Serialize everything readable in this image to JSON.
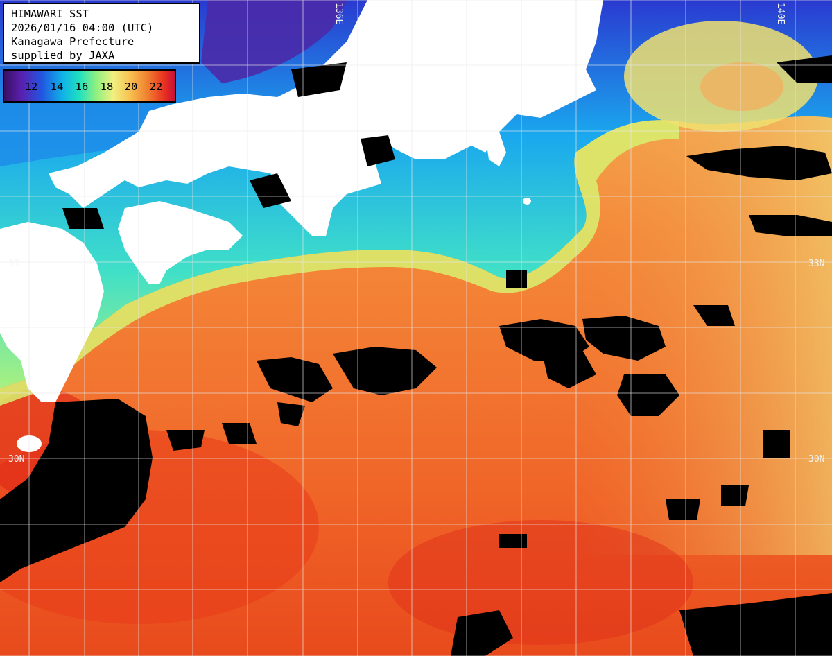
{
  "header": {
    "title": "HIMAWARI SST",
    "datetime": "2026/01/16 04:00 (UTC)",
    "region": "Kanagawa Prefecture",
    "credit": "supplied by JAXA"
  },
  "legend": {
    "ticks": [
      "12",
      "14",
      "16",
      "18",
      "20",
      "22"
    ]
  },
  "grid_labels": {
    "lat_33_left": "33",
    "lat_33_right": "33N",
    "lat_30_left": "30N",
    "lat_30_right": "30N",
    "lon_136": "136E",
    "lon_140": "140E"
  },
  "colors": {
    "land": "#ffffff",
    "cloud": "#000000",
    "grid": "#e8e8e8",
    "warm": "#f06a28",
    "cool": "#30c8f0"
  }
}
